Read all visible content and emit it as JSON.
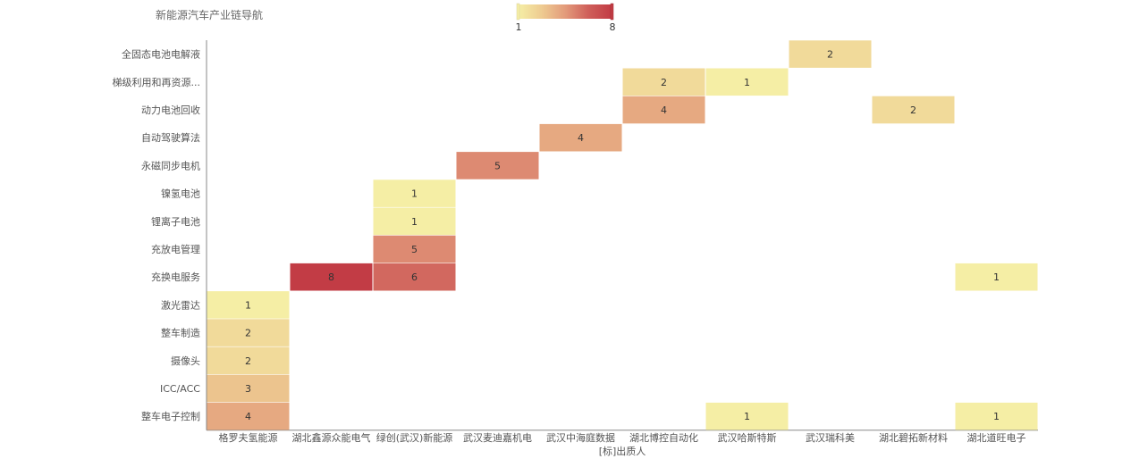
{
  "title": "新能源汽车产业链导航",
  "chart_data": {
    "type": "heatmap",
    "x_name": "[标]出质人",
    "x_categories": [
      "格罗夫氢能源",
      "湖北鑫源众能电气",
      "绿创(武汉)新能源",
      "武汉麦迪嘉机电",
      "武汉中海庭数据",
      "湖北博控自动化",
      "武汉哈斯特斯",
      "武汉瑞科美",
      "湖北碧拓新材料",
      "湖北道旺电子"
    ],
    "y_categories": [
      "全固态电池电解液",
      "梯级利用和再资源...",
      "动力电池回收",
      "自动驾驶算法",
      "永磁同步电机",
      "镍氢电池",
      "锂离子电池",
      "充放电管理",
      "充换电服务",
      "激光雷达",
      "整车制造",
      "摄像头",
      "ICC/ACC",
      "整车电子控制"
    ],
    "cells": [
      {
        "x": "武汉瑞科美",
        "y": "全固态电池电解液",
        "value": 2
      },
      {
        "x": "湖北博控自动化",
        "y": "梯级利用和再资源...",
        "value": 2
      },
      {
        "x": "武汉哈斯特斯",
        "y": "梯级利用和再资源...",
        "value": 1
      },
      {
        "x": "湖北博控自动化",
        "y": "动力电池回收",
        "value": 4
      },
      {
        "x": "湖北碧拓新材料",
        "y": "动力电池回收",
        "value": 2
      },
      {
        "x": "武汉中海庭数据",
        "y": "自动驾驶算法",
        "value": 4
      },
      {
        "x": "武汉麦迪嘉机电",
        "y": "永磁同步电机",
        "value": 5
      },
      {
        "x": "绿创(武汉)新能源",
        "y": "镍氢电池",
        "value": 1
      },
      {
        "x": "绿创(武汉)新能源",
        "y": "锂离子电池",
        "value": 1
      },
      {
        "x": "绿创(武汉)新能源",
        "y": "充放电管理",
        "value": 5
      },
      {
        "x": "湖北鑫源众能电气",
        "y": "充换电服务",
        "value": 8
      },
      {
        "x": "绿创(武汉)新能源",
        "y": "充换电服务",
        "value": 6
      },
      {
        "x": "湖北道旺电子",
        "y": "充换电服务",
        "value": 1
      },
      {
        "x": "格罗夫氢能源",
        "y": "激光雷达",
        "value": 1
      },
      {
        "x": "格罗夫氢能源",
        "y": "整车制造",
        "value": 2
      },
      {
        "x": "格罗夫氢能源",
        "y": "摄像头",
        "value": 2
      },
      {
        "x": "格罗夫氢能源",
        "y": "ICC/ACC",
        "value": 3
      },
      {
        "x": "格罗夫氢能源",
        "y": "整车电子控制",
        "value": 4
      },
      {
        "x": "武汉哈斯特斯",
        "y": "整车电子控制",
        "value": 1
      },
      {
        "x": "湖北道旺电子",
        "y": "整车电子控制",
        "value": 1
      }
    ],
    "visual_map": {
      "min": 1,
      "max": 8,
      "min_label": "1",
      "max_label": "8",
      "colors": [
        "#f5eea5",
        "#eecb91",
        "#e39b7b",
        "#cf5f5a",
        "#c23c45"
      ]
    },
    "legend": "top-center",
    "grid": false
  }
}
